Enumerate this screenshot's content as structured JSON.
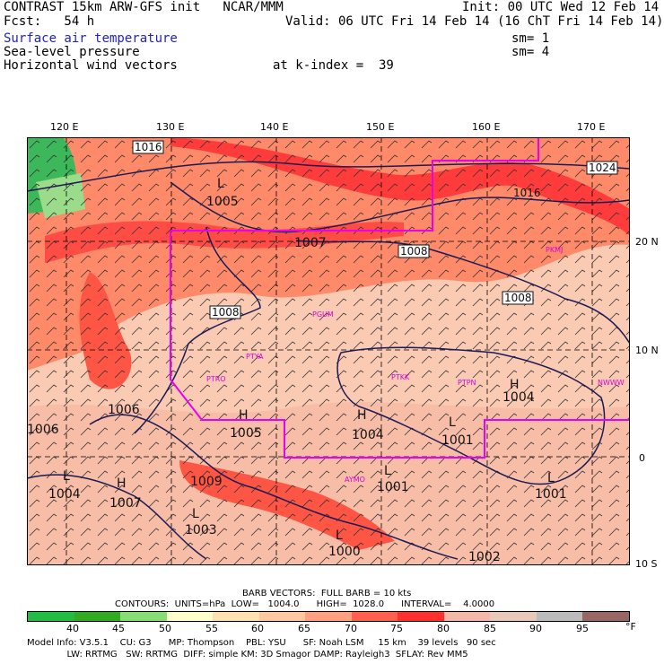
{
  "header": {
    "line1_left": "CONTRAST 15km ARW-GFS init   NCAR/MMM",
    "line1_right": "Init: 00 UTC Wed 12 Feb 14",
    "line2_left": "Fcst:   54 h",
    "line2_right": "Valid: 06 UTC Fri 14 Feb 14 (16 ChT Fri 14 Feb 14)",
    "field1": "Surface air temperature",
    "field1_sm": "sm= 1",
    "field2": "Sea-level pressure",
    "field2_sm": "sm= 4",
    "field3": "Horizontal wind vectors",
    "field3_level": "at k-index =  39"
  },
  "map": {
    "lon_labels": [
      "120 E",
      "130 E",
      "140 E",
      "150 E",
      "160 E",
      "170 E"
    ],
    "lat_labels": [
      "20 N",
      "10 N",
      "0",
      "10 S"
    ],
    "isobar_labels": [
      "1016",
      "1024",
      "1016",
      "1005",
      "1007",
      "1008",
      "1008",
      "1008",
      "1006",
      "1005",
      "1004",
      "1001",
      "1004",
      "1001",
      "1004",
      "1007",
      "1009",
      "1003",
      "1001",
      "1000",
      "1002",
      "1006"
    ],
    "pressure_centers": [
      "H",
      "H",
      "H",
      "L",
      "L",
      "L",
      "L",
      "H",
      "L",
      "L",
      "L"
    ],
    "station_labels": [
      "PGUM",
      "PTYA",
      "PTRO",
      "PTKK",
      "PTPN",
      "PKMJ",
      "NWWW",
      "AYMO"
    ]
  },
  "footer": {
    "barb_line": "BARB VECTORS:  FULL BARB = 10 kts",
    "contours_line": "CONTOURS:  UNITS=hPa  LOW=   1004.0      HIGH=  1028.0      INTERVAL=    4.0000",
    "model_line1": "Model Info: V3.5.1    CU: G3      MP: Thompson    PBL: YSU      SF: Noah LSM     15 km    39 levels   90 sec",
    "model_line2": "              LW: RRTMG   SW: RRTMG  DIFF: simple KM: 3D Smagor DAMP: Rayleigh3  SFLAY: Rev MM5"
  },
  "colorbar": {
    "labels": [
      "40",
      "45",
      "50",
      "55",
      "60",
      "65",
      "70",
      "75",
      "80",
      "85",
      "90",
      "95"
    ],
    "unit": "°F",
    "colors": [
      "#22bb44",
      "#33aa22",
      "#88dd77",
      "#ffffcc",
      "#ffe0b0",
      "#ffc8a0",
      "#ffa080",
      "#ff6050",
      "#ff3030",
      "#f4b8a8",
      "#e8c8b8",
      "#bbbbbb",
      "#996666"
    ]
  },
  "colors": {
    "outline": "#ee00ee",
    "isobar": "#1a1a55",
    "title_blue": "#2222cc"
  }
}
